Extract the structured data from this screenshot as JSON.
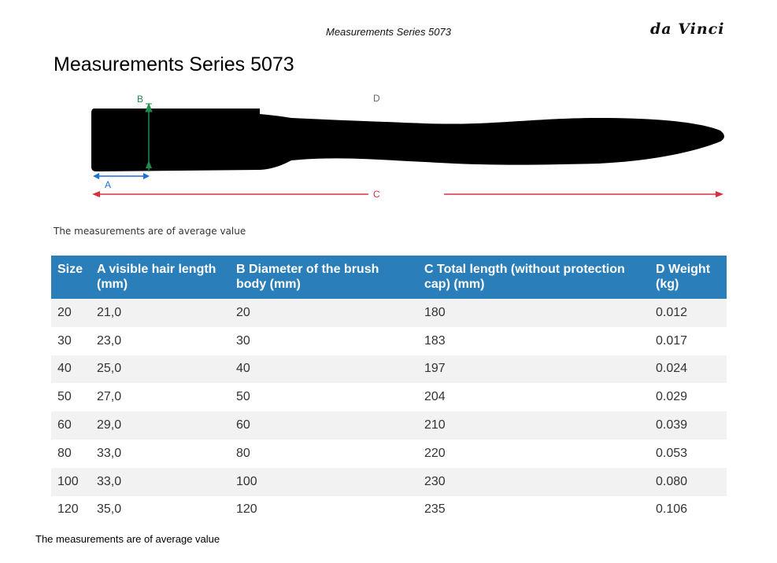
{
  "header": {
    "doc_title": "Measurements Series 5073",
    "logo": "da Vinci"
  },
  "page_title": "Measurements Series 5073",
  "diagram": {
    "label_a": "A",
    "label_b": "B",
    "label_c": "C",
    "label_d": "D",
    "colors": {
      "a": "#1e6fd9",
      "b": "#1f8a4c",
      "c": "#d9303e",
      "d": "#666666",
      "brush": "#000000"
    }
  },
  "note_top": "The measurements are of average value",
  "table": {
    "headers": [
      "Size",
      "A visible hair length (mm)",
      "B Diameter of the brush body (mm)",
      "C Total length (without protection cap) (mm)",
      "D Weight (kg)"
    ],
    "rows": [
      [
        "20",
        "21,0",
        "20",
        "180",
        "0.012"
      ],
      [
        "30",
        "23,0",
        "30",
        "183",
        "0.017"
      ],
      [
        "40",
        "25,0",
        "40",
        "197",
        "0.024"
      ],
      [
        "50",
        "27,0",
        "50",
        "204",
        "0.029"
      ],
      [
        "60",
        "29,0",
        "60",
        "210",
        "0.039"
      ],
      [
        "80",
        "33,0",
        "80",
        "220",
        "0.053"
      ],
      [
        "100",
        "33,0",
        "100",
        "230",
        "0.080"
      ],
      [
        "120",
        "35,0",
        "120",
        "235",
        "0.106"
      ]
    ],
    "header_color": "#2a7fba"
  },
  "note_bottom": "The measurements are of average value"
}
